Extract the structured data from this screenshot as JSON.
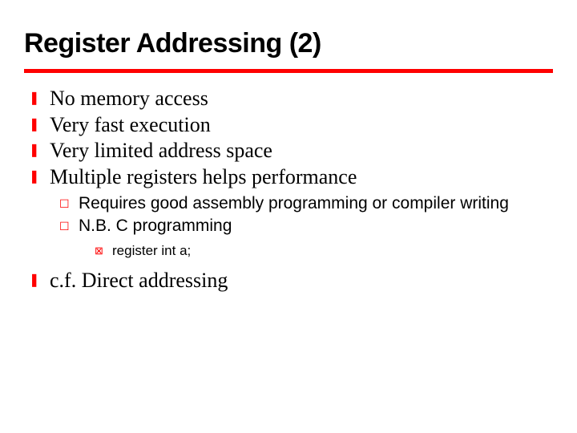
{
  "title": "Register Addressing (2)",
  "colors": {
    "accent": "#ff0000",
    "text": "#000000",
    "background": "#ffffff"
  },
  "bullets": {
    "level1_glyph": "❚",
    "level2_glyph": "☐",
    "level3_glyph": "⊠"
  },
  "typography": {
    "title_fontsize": 34,
    "title_weight": 900,
    "level1_fontsize": 26,
    "level1_family": "Times New Roman",
    "level2_fontsize": 21,
    "level2_family": "Arial",
    "level3_fontsize": 17,
    "level3_family": "Arial"
  },
  "items": {
    "l1_0": "No memory access",
    "l1_1": "Very fast execution",
    "l1_2": "Very limited address space",
    "l1_3": "Multiple registers helps performance",
    "l2_0": "Requires good assembly programming or compiler writing",
    "l2_1": "N.B. C programming",
    "l3_0": "register int a;",
    "l1_4": "c.f. Direct addressing"
  }
}
